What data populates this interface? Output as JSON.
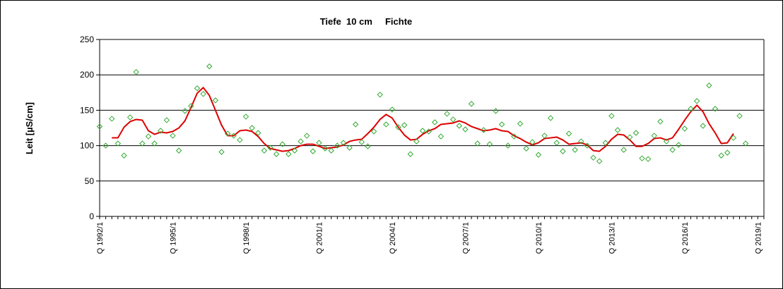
{
  "chart_data": {
    "type": "scatter",
    "title": "Tiefe  10 cm     Fichte",
    "ylabel": "Leit [µS/cm]",
    "xlabel": "",
    "ylim": [
      0,
      250
    ],
    "yticks": [
      0,
      50,
      100,
      150,
      200,
      250
    ],
    "grid": true,
    "legend": "none",
    "x_count": 110,
    "x_tick_labels": [
      {
        "index": 0,
        "label": "Q 1992/1"
      },
      {
        "index": 12,
        "label": "Q 1995/1"
      },
      {
        "index": 24,
        "label": "Q 1998/1"
      },
      {
        "index": 36,
        "label": "Q 2001/1"
      },
      {
        "index": 48,
        "label": "Q 2004/1"
      },
      {
        "index": 60,
        "label": "Q 2007/1"
      },
      {
        "index": 72,
        "label": "Q 2010/1"
      },
      {
        "index": 84,
        "label": "Q 2013/1"
      },
      {
        "index": 96,
        "label": "Q 2016/1"
      },
      {
        "index": 108,
        "label": "Q 2019/1"
      }
    ],
    "series": [
      {
        "kind": "scatter",
        "color": "#33aa33",
        "marker": "diamond-open",
        "values": [
          127,
          100,
          138,
          103,
          86,
          140,
          204,
          103,
          113,
          103,
          121,
          136,
          114,
          93,
          149,
          156,
          181,
          173,
          212,
          164,
          91,
          117,
          114,
          108,
          141,
          125,
          118,
          93,
          97,
          88,
          102,
          88,
          93,
          106,
          114,
          92,
          104,
          96,
          93,
          100,
          104,
          97,
          130,
          105,
          99,
          120,
          172,
          130,
          151,
          126,
          129,
          88,
          106,
          121,
          120,
          133,
          113,
          145,
          137,
          128,
          123,
          159,
          103,
          122,
          102,
          149,
          130,
          100,
          113,
          131,
          96,
          105,
          87,
          114,
          139,
          104,
          92,
          117,
          94,
          106,
          100,
          83,
          78,
          104,
          142,
          122,
          94,
          112,
          118,
          82,
          81,
          114,
          134,
          106,
          94,
          101,
          124,
          152,
          163,
          128,
          185,
          152,
          86,
          90,
          111,
          142,
          103
        ]
      },
      {
        "kind": "line",
        "color": "#dd0000",
        "start_index": 2,
        "values": [
          111,
          111,
          126,
          134,
          137,
          136,
          121,
          116,
          119,
          118,
          120,
          125,
          135,
          154,
          174,
          182,
          171,
          150,
          129,
          114,
          114,
          121,
          122,
          120,
          113,
          103,
          96,
          94,
          92,
          93,
          96,
          100,
          102,
          102,
          99,
          96,
          97,
          98,
          101,
          106,
          108,
          109,
          117,
          126,
          137,
          144,
          139,
          126,
          115,
          108,
          109,
          116,
          121,
          124,
          130,
          131,
          132,
          135,
          132,
          127,
          124,
          121,
          122,
          124,
          121,
          120,
          114,
          110,
          105,
          101,
          104,
          110,
          111,
          112,
          108,
          102,
          103,
          104,
          101,
          93,
          92,
          99,
          109,
          116,
          115,
          108,
          99,
          99,
          103,
          110,
          111,
          108,
          111,
          123,
          136,
          148,
          157,
          148,
          131,
          118,
          103,
          104,
          117
        ]
      }
    ]
  }
}
